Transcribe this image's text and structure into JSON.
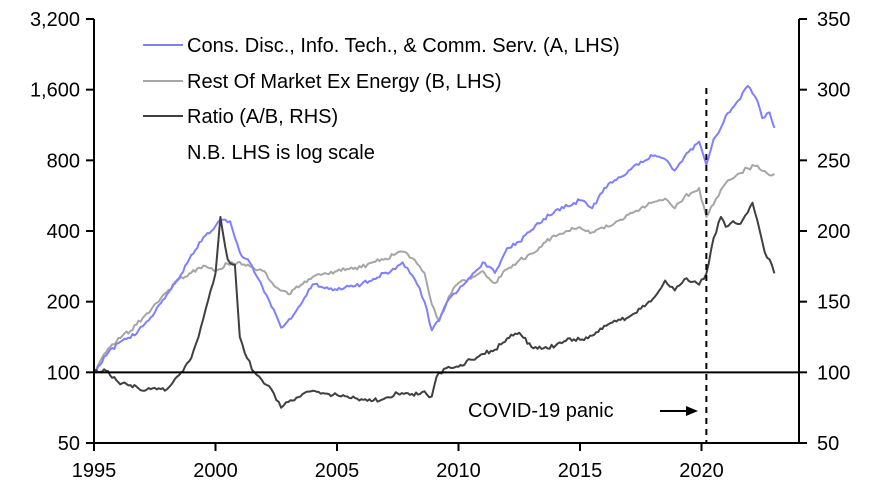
{
  "chart_data": {
    "type": "line",
    "title": "",
    "xlabel": "",
    "ylabel_left": "",
    "ylabel_right": "",
    "x_range": [
      1995,
      2024
    ],
    "x_ticks": [
      "1995",
      "2000",
      "2005",
      "2010",
      "2015",
      "2020"
    ],
    "x_tick_values": [
      1995,
      2000,
      2005,
      2010,
      2015,
      2020
    ],
    "left_axis": {
      "scale": "log",
      "range": [
        50,
        3200
      ],
      "ticks": [
        50,
        100,
        200,
        400,
        800,
        1600,
        3200
      ],
      "tick_labels": [
        "50",
        "100",
        "200",
        "400",
        "800",
        "1,600",
        "3,200"
      ]
    },
    "right_axis": {
      "scale": "linear",
      "range": [
        50,
        350
      ],
      "ticks": [
        50,
        100,
        150,
        200,
        250,
        300,
        350
      ],
      "tick_labels": [
        "50",
        "100",
        "150",
        "200",
        "250",
        "300",
        "350"
      ]
    },
    "grid": false,
    "legend_position": "top-left",
    "reference_line": {
      "axis": "right",
      "value": 100
    },
    "series": [
      {
        "name": "Cons. Disc., Info. Tech., & Comm. Serv. (A, LHS)",
        "axis": "left",
        "color": "#7f7fff",
        "x": [
          1995.0,
          1995.5,
          1996.0,
          1996.5,
          1997.0,
          1997.5,
          1998.0,
          1998.5,
          1999.0,
          1999.5,
          2000.0,
          2000.2,
          2000.6,
          2001.0,
          2001.5,
          2002.0,
          2002.4,
          2002.7,
          2003.2,
          2003.5,
          2004.0,
          2004.5,
          2005.0,
          2005.5,
          2006.0,
          2006.5,
          2007.0,
          2007.4,
          2007.7,
          2008.0,
          2008.3,
          2008.6,
          2008.9,
          2009.2,
          2009.6,
          2010.0,
          2010.5,
          2011.0,
          2011.5,
          2012.0,
          2012.5,
          2013.0,
          2013.5,
          2014.0,
          2014.5,
          2015.0,
          2015.5,
          2016.0,
          2016.5,
          2017.0,
          2017.5,
          2018.0,
          2018.5,
          2018.9,
          2019.3,
          2019.9,
          2020.2,
          2020.5,
          2020.8,
          2021.0,
          2021.5,
          2021.9,
          2022.3,
          2022.5,
          2022.8,
          2023.0
        ],
        "y": [
          100,
          118,
          133,
          140,
          157,
          180,
          215,
          252,
          316,
          376,
          420,
          446,
          440,
          325,
          285,
          220,
          185,
          155,
          175,
          194,
          237,
          228,
          224,
          232,
          237,
          250,
          266,
          275,
          294,
          265,
          237,
          200,
          151,
          167,
          205,
          224,
          255,
          294,
          265,
          338,
          360,
          403,
          450,
          491,
          510,
          541,
          500,
          610,
          660,
          724,
          790,
          835,
          810,
          724,
          830,
          960,
          767,
          984,
          1100,
          1240,
          1435,
          1660,
          1435,
          1210,
          1280,
          1100
        ]
      },
      {
        "name": "Rest Of Market Ex Energy (B, LHS)",
        "axis": "left",
        "color": "#a6a6a6",
        "x": [
          1995.0,
          1995.5,
          1996.0,
          1996.5,
          1997.0,
          1997.5,
          1998.0,
          1998.5,
          1999.0,
          1999.5,
          2000.0,
          2000.5,
          2001.0,
          2001.5,
          2002.0,
          2002.5,
          2003.0,
          2003.5,
          2004.0,
          2004.5,
          2005.0,
          2005.5,
          2006.0,
          2006.5,
          2007.0,
          2007.5,
          2007.9,
          2008.3,
          2008.6,
          2008.9,
          2009.2,
          2009.6,
          2010.0,
          2010.5,
          2011.0,
          2011.5,
          2012.0,
          2012.5,
          2013.0,
          2013.5,
          2014.0,
          2014.5,
          2015.0,
          2015.5,
          2016.0,
          2016.5,
          2017.0,
          2017.5,
          2018.0,
          2018.5,
          2018.9,
          2019.3,
          2019.9,
          2020.2,
          2020.5,
          2020.8,
          2021.0,
          2021.5,
          2021.9,
          2022.3,
          2022.6,
          2022.8,
          2023.0
        ],
        "y": [
          100,
          122,
          140,
          150,
          170,
          195,
          220,
          250,
          265,
          285,
          270,
          290,
          295,
          280,
          270,
          230,
          215,
          235,
          255,
          265,
          270,
          275,
          280,
          295,
          305,
          325,
          320,
          290,
          265,
          195,
          165,
          210,
          240,
          250,
          270,
          240,
          275,
          300,
          320,
          355,
          380,
          400,
          415,
          395,
          410,
          440,
          470,
          500,
          530,
          550,
          500,
          560,
          610,
          460,
          520,
          600,
          640,
          700,
          740,
          760,
          720,
          690,
          700
        ]
      },
      {
        "name": "Ratio (A/B, RHS)",
        "axis": "right",
        "color": "#404040",
        "x": [
          1995.0,
          1995.5,
          1996.0,
          1996.5,
          1997.0,
          1997.5,
          1998.0,
          1998.5,
          1999.0,
          1999.3,
          1999.6,
          2000.0,
          2000.2,
          2000.5,
          2000.8,
          2001.0,
          2001.3,
          2001.6,
          2002.0,
          2002.3,
          2002.7,
          2003.0,
          2003.5,
          2004.0,
          2004.5,
          2005.0,
          2005.5,
          2006.0,
          2006.5,
          2007.0,
          2007.5,
          2008.0,
          2008.5,
          2008.9,
          2009.1,
          2009.5,
          2010.0,
          2010.5,
          2011.0,
          2011.5,
          2012.0,
          2012.5,
          2013.0,
          2013.5,
          2014.0,
          2014.5,
          2015.0,
          2015.5,
          2016.0,
          2016.5,
          2017.0,
          2017.5,
          2018.0,
          2018.5,
          2018.9,
          2019.3,
          2019.9,
          2020.2,
          2020.5,
          2020.8,
          2021.0,
          2021.3,
          2021.6,
          2021.9,
          2022.1,
          2022.4,
          2022.6,
          2022.8,
          2023.0
        ],
        "y": [
          100,
          101,
          93,
          91,
          87,
          89,
          88,
          98,
          110,
          125,
          145,
          170,
          210,
          180,
          176,
          125,
          110,
          100,
          92,
          88,
          75,
          79,
          83,
          87,
          85,
          84,
          82,
          81,
          80,
          82,
          85,
          84,
          86,
          83,
          97,
          103,
          104,
          109,
          113,
          116,
          124,
          128,
          118,
          117,
          119,
          124,
          123,
          126,
          133,
          136,
          139,
          145,
          152,
          165,
          158,
          166,
          162,
          170,
          195,
          210,
          203,
          207,
          205,
          213,
          220,
          200,
          185,
          180,
          170
        ]
      }
    ],
    "annotations": [
      {
        "text": "COVID-19 panic",
        "arrow": "right",
        "target_x": 2020.2,
        "vline_style": "dashed"
      }
    ],
    "notes": [
      "N.B. LHS is log scale"
    ]
  }
}
